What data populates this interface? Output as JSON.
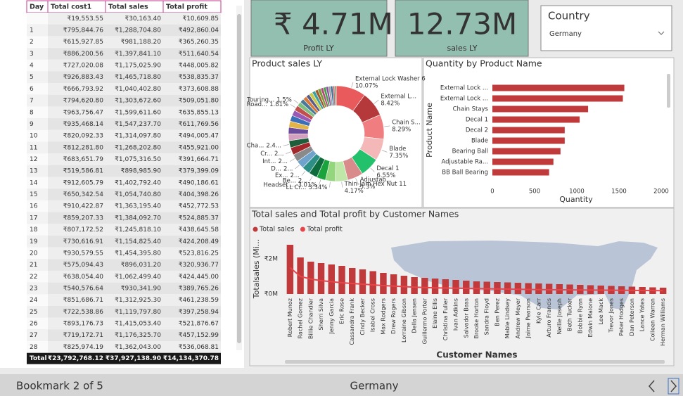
{
  "table": {
    "header": [
      "Day",
      "Total cost1",
      "Total sales",
      "Total profit"
    ],
    "rows": [
      [
        null,
        "₹19,553.55",
        "₹30,163.40",
        "₹10,609.85"
      ],
      [
        "1",
        "₹795,844.76",
        "₹1,288,704.80",
        "₹492,860.04"
      ],
      [
        "2",
        "₹615,927.85",
        "₹981,188.20",
        "₹365,260.35"
      ],
      [
        "3",
        "₹886,200.56",
        "₹1,397,841.10",
        "₹511,640.54"
      ],
      [
        "4",
        "₹727,020.08",
        "₹1,175,025.90",
        "₹448,005.82"
      ],
      [
        "5",
        "₹926,883.43",
        "₹1,465,718.80",
        "₹538,835.37"
      ],
      [
        "6",
        "₹666,793.92",
        "₹1,040,402.80",
        "₹373,608.88"
      ],
      [
        "7",
        "₹794,620.80",
        "₹1,303,672.60",
        "₹509,051.80"
      ],
      [
        "8",
        "₹963,756.47",
        "₹1,599,611.60",
        "₹635,855.13"
      ],
      [
        "9",
        "₹935,468.14",
        "₹1,547,237.70",
        "₹611,769.56"
      ],
      [
        "10",
        "₹820,092.33",
        "₹1,314,097.80",
        "₹494,005.47"
      ],
      [
        "11",
        "₹812,281.80",
        "₹1,268,202.80",
        "₹455,921.00"
      ],
      [
        "12",
        "₹683,651.79",
        "₹1,075,316.50",
        "₹391,664.71"
      ],
      [
        "13",
        "₹519,586.81",
        "₹898,985.90",
        "₹379,399.09"
      ],
      [
        "14",
        "₹912,605.79",
        "₹1,402,792.40",
        "₹490,186.61"
      ],
      [
        "15",
        "₹650,342.54",
        "₹1,054,740.80",
        "₹404,398.26"
      ],
      [
        "16",
        "₹910,422.87",
        "₹1,363,195.40",
        "₹452,772.53"
      ],
      [
        "17",
        "₹859,207.33",
        "₹1,384,092.70",
        "₹524,885.37"
      ],
      [
        "18",
        "₹807,172.52",
        "₹1,245,818.10",
        "₹438,645.58"
      ],
      [
        "19",
        "₹730,616.91",
        "₹1,154,825.40",
        "₹424,208.49"
      ],
      [
        "20",
        "₹930,579.55",
        "₹1,454,395.80",
        "₹523,816.25"
      ],
      [
        "21",
        "₹575,094.43",
        "₹896,031.20",
        "₹320,936.77"
      ],
      [
        "22",
        "₹638,054.40",
        "₹1,062,499.40",
        "₹424,445.00"
      ],
      [
        "23",
        "₹540,576.64",
        "₹930,341.90",
        "₹389,765.26"
      ],
      [
        "24",
        "₹851,686.71",
        "₹1,312,925.30",
        "₹461,238.59"
      ],
      [
        "25",
        "₹722,538.86",
        "₹1,119,797.80",
        "₹397,258.94"
      ],
      [
        "26",
        "₹893,176.73",
        "₹1,415,053.40",
        "₹521,876.67"
      ],
      [
        "27",
        "₹719,172.71",
        "₹1,176,325.70",
        "₹457,152.99"
      ],
      [
        "28",
        "₹825,974.19",
        "₹1,362,043.00",
        "₹536,068.81"
      ]
    ],
    "total": [
      "Total",
      "₹23,792,768.12",
      "₹37,927,138.90",
      "₹14,134,370.78"
    ]
  },
  "cards": [
    {
      "value": "₹ 4.71M",
      "label": "Profit LY"
    },
    {
      "value": "12.73M",
      "label": "sales LY"
    }
  ],
  "slicer": {
    "title": "Country",
    "selected": "Germany"
  },
  "footer": {
    "bookmark": "Bookmark 2 of 5",
    "filter": "Germany"
  },
  "chart_data": [
    {
      "type": "donut",
      "title": "Product sales LY",
      "categories": [
        "External Lock Washer 6",
        "External L...",
        "Chain S...",
        "Blade",
        "Decal 1",
        "Adjustab...",
        "Thin-Jam Hex Nut 11",
        "LL Cr...",
        "Headset ...",
        "Be...",
        "Ex...",
        "D...",
        "Int...",
        "Cr...",
        "Cha...",
        null,
        null,
        null,
        null,
        null,
        "Road...",
        "Touring...",
        null,
        null,
        null,
        null,
        null,
        null,
        null,
        null,
        null,
        null,
        null,
        null,
        null,
        null
      ],
      "values": [
        10.07,
        8.42,
        8.29,
        7.35,
        6.55,
        5.3,
        4.17,
        3.34,
        3.01,
        2.9,
        2.8,
        2.7,
        2.6,
        2.5,
        2.4,
        2.3,
        2.2,
        2.1,
        2.0,
        1.9,
        1.81,
        1.5,
        1.4,
        1.3,
        1.2,
        1.2,
        1.1,
        1.0,
        1.0,
        0.9,
        0.9,
        0.8,
        0.8,
        0.7,
        0.7,
        0.49
      ],
      "value_labels": [
        "10.07%",
        "8.42%",
        "8.29%",
        "7.35%",
        "6.55%",
        "5.3%",
        "4.17%",
        "3.34%",
        "3.01%",
        "2...",
        "2...",
        "2...",
        "2...",
        "2...",
        "2.4...",
        null,
        null,
        null,
        null,
        null,
        "1.81%",
        "1.5%",
        null,
        null,
        null,
        null,
        null,
        null,
        null,
        null,
        null,
        null,
        null,
        null,
        null,
        null
      ],
      "colors": [
        "#e85a5c",
        "#b5383a",
        "#f07e80",
        "#f5b8b8",
        "#23c16b",
        "#d98a8a",
        "#bfe8a8",
        "#93d67e",
        "#1aa33c",
        "#0d6b3c",
        "#2e8f86",
        "#6fa3cc",
        "#8a8a8a",
        "#a3282b",
        "#1f5e3a",
        "#d4a0c0",
        "#6b4c9a",
        "#e3b448",
        "#3b6fb6",
        "#9b59b6",
        "#c0504d",
        "#7fbf7f",
        "#4a7a9a",
        "#d87a3a",
        "#5a5a8a",
        "#c9c94a",
        "#3aa0a0",
        "#a05a2a",
        "#7a9a3a",
        "#b04a7a",
        "#4aa04a",
        "#8a4aa0",
        "#a0a0a0",
        "#2a6a9a",
        "#c07070",
        "#5a8a5a"
      ]
    },
    {
      "type": "bar",
      "orientation": "horizontal",
      "title": "Quantity by Product Name",
      "categories": [
        "External Lock ...",
        "External Lock ...",
        "Chain Stays",
        "Decal 1",
        "Decal 2",
        "Blade",
        "Bearing Ball",
        "Adjustable Ra...",
        "BB Ball Bearing"
      ],
      "values": [
        1563,
        1546,
        1134,
        1034,
        857,
        857,
        807,
        723,
        672
      ],
      "color": "#c0393b",
      "xlim": [
        0,
        2000
      ],
      "xticks": [
        0,
        500,
        1000,
        1500,
        2000
      ],
      "grid": false,
      "xlabel": "Quantity",
      "ylabel": "Product Name"
    },
    {
      "type": "combo",
      "title": "Total sales and Total profit by Customer Names",
      "xlabel": "Customer Names",
      "ylabel": "Totalsales (Mi...",
      "categories": [
        "Robert Munoz",
        "Rachel Gomez",
        "Billie Chandler",
        "Sherri Silva",
        "Jenny Garcia",
        "Eric Rose",
        "Cassandra Frank",
        "Cindy Becker",
        "Isabel Cross",
        "Max Rodgers",
        "Drew Rogers",
        "Lorraine Gibson",
        "Della Jensen",
        "Guillermo Porter",
        "Elaine Ellis",
        "Christina Fuller",
        "Ivan Adkins",
        "Salvador Bass",
        "Brooke Horton",
        "Sandra Floyd",
        "Ben Perez",
        "Mable Lindsey",
        "Andrew Meyer",
        "Jaime Pearson",
        "Kyle Carr",
        "Arturo Francis",
        "Nellie Joseph",
        "Beth Tucker",
        "Bobbie Ryan",
        "Edwin Malone",
        "Lee Mack",
        "Trevor Jones",
        "Peter Hodges",
        "Dan Peterson",
        "Lance Yates",
        "Colleen Warren",
        "Herman Williams"
      ],
      "series": [
        {
          "name": "Total sales",
          "type": "bar",
          "color": "#c0393b",
          "values": [
            2800000,
            2080000,
            1840000,
            1760000,
            1680000,
            1600000,
            1480000,
            1400000,
            1300000,
            1200000,
            1120000,
            1040000,
            960000,
            920000,
            880000,
            840000,
            800000,
            760000,
            720000,
            700000,
            680000,
            660000,
            640000,
            620000,
            600000,
            580000,
            560000,
            540000,
            520000,
            500000,
            480000,
            460000,
            440000,
            420000,
            400000,
            380000,
            360000
          ]
        },
        {
          "name": "Total profit",
          "type": "line",
          "color": "#e8454a",
          "values": [
            1500000,
            1000000,
            850000,
            760000,
            700000,
            640000,
            600000,
            560000,
            520000,
            480000,
            450000,
            420000,
            390000,
            370000,
            350000,
            340000,
            330000,
            320000,
            310000,
            300000,
            290000,
            280000,
            270000,
            260000,
            250000,
            245000,
            240000,
            235000,
            230000,
            225000,
            220000,
            215000,
            210000,
            205000,
            200000,
            195000,
            190000
          ]
        }
      ],
      "ylim": [
        0,
        3100000
      ],
      "yticks": [
        {
          "value": 0,
          "label": "₹0M"
        },
        {
          "value": 2000000,
          "label": "₹2M"
        }
      ]
    }
  ]
}
